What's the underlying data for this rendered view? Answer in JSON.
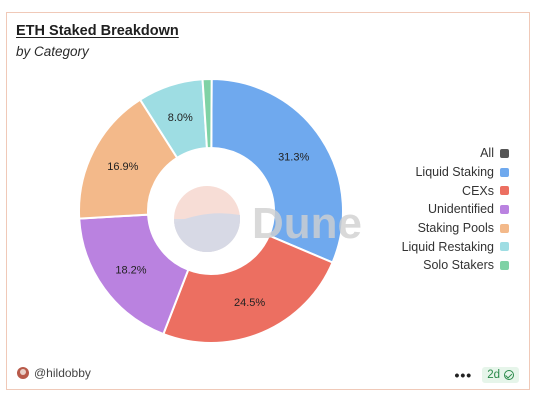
{
  "header": {
    "title": "ETH Staked Breakdown",
    "subtitle": "by Category"
  },
  "watermark": "Dune",
  "legend_all": {
    "label": "All",
    "color": "#555555"
  },
  "chart_data": {
    "type": "pie",
    "title": "ETH Staked Breakdown",
    "subtitle": "by Category",
    "donut": true,
    "legend_position": "right",
    "series": [
      {
        "name": "Liquid Staking",
        "value": 31.3,
        "label": "31.3%",
        "color": "#6FA9EE"
      },
      {
        "name": "CEXs",
        "value": 24.5,
        "label": "24.5%",
        "color": "#EC6F61"
      },
      {
        "name": "Unidentified",
        "value": 18.2,
        "label": "18.2%",
        "color": "#BA82E0"
      },
      {
        "name": "Staking Pools",
        "value": 16.9,
        "label": "16.9%",
        "color": "#F3B98A"
      },
      {
        "name": "Liquid Restaking",
        "value": 8.0,
        "label": "8.0%",
        "color": "#9EDDE3"
      },
      {
        "name": "Solo Stakers",
        "value": 1.1,
        "label": "",
        "color": "#7FD2A5"
      }
    ]
  },
  "footer": {
    "author": "@hildobby",
    "menu_icon": "ellipsis-icon",
    "age": "2d",
    "status_icon": "check-circle-icon"
  }
}
